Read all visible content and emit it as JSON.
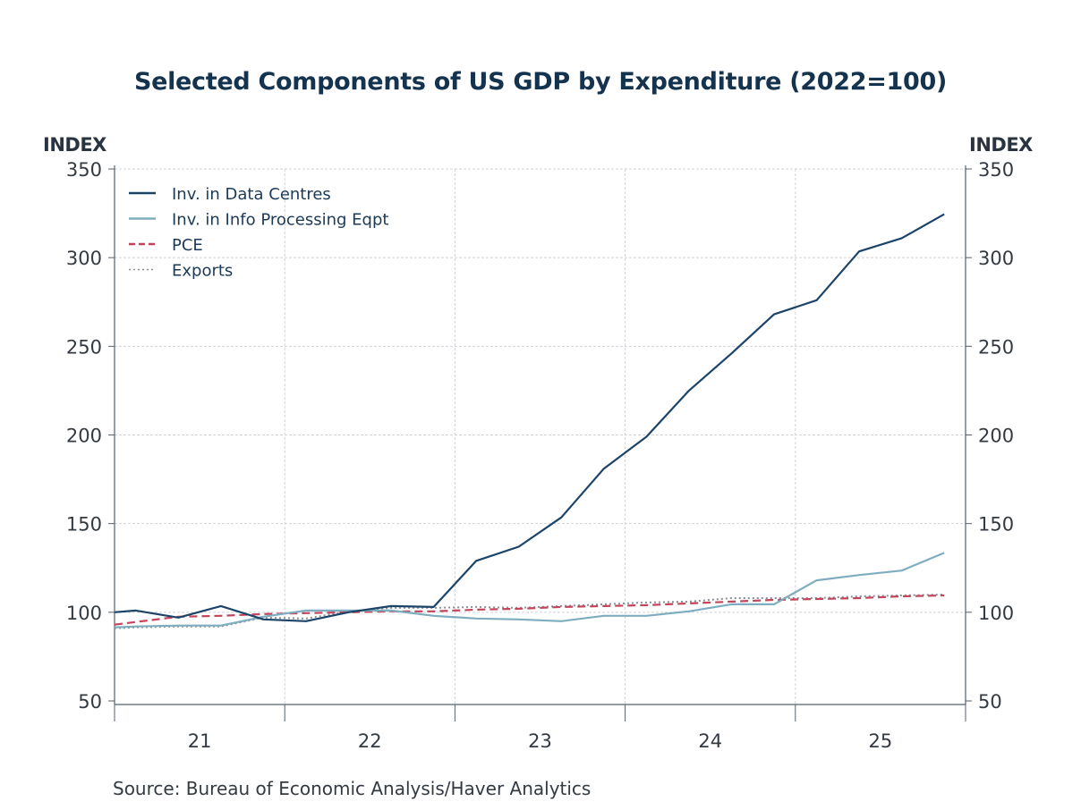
{
  "chart_data": {
    "type": "line",
    "title": "Selected Components of US GDP by Expenditure (2022=100)",
    "ylabel_left": "INDEX",
    "ylabel_right": "INDEX",
    "xlabel": "",
    "ylim": [
      48,
      350
    ],
    "yticks": [
      50,
      100,
      150,
      200,
      250,
      300,
      350
    ],
    "xlim": [
      "2021Q1",
      "2025Q4"
    ],
    "xtick_labels": [
      "21",
      "22",
      "23",
      "24",
      "25"
    ],
    "grid": true,
    "legend_position": "top-left",
    "x": [
      "2020Q4*",
      "2021Q1",
      "2021Q2",
      "2021Q3",
      "2021Q4",
      "2022Q1",
      "2022Q2",
      "2022Q3",
      "2022Q4",
      "2023Q1",
      "2023Q2",
      "2023Q3",
      "2023Q4",
      "2024Q1",
      "2024Q2",
      "2024Q3",
      "2024Q4",
      "2025Q1",
      "2025Q2",
      "2025Q3",
      "2025Q4"
    ],
    "series": [
      {
        "name": "Inv. in Data Centres",
        "color": "#1b4468",
        "style": "solid",
        "values": [
          100,
          101,
          97,
          103.5,
          96,
          95,
          100,
          103.5,
          103,
          129,
          137,
          153.5,
          181,
          199,
          225,
          246,
          268,
          276,
          303.5,
          311,
          324.5
        ]
      },
      {
        "name": "Inv. in Info Processing Eqpt",
        "color": "#7fadc0",
        "style": "solid",
        "values": [
          91.5,
          92,
          92.5,
          92.5,
          97.5,
          101,
          101,
          101,
          98,
          96.5,
          96,
          95,
          98,
          98,
          100.5,
          104.5,
          104.5,
          118,
          121,
          123.5,
          133.5
        ]
      },
      {
        "name": "PCE",
        "color": "#c4445a",
        "style": "dashed",
        "values": [
          93,
          94.5,
          97.5,
          98,
          99,
          99.5,
          100,
          100.5,
          100.5,
          101.5,
          102,
          103,
          103.5,
          104,
          105,
          106,
          107,
          107.5,
          108,
          109,
          109.5
        ]
      },
      {
        "name": "Exports",
        "color": "#8a8f96",
        "style": "dotted",
        "values": [
          91,
          91.5,
          92,
          92,
          97,
          96.5,
          100.5,
          102.5,
          102.5,
          103,
          102.5,
          103.5,
          104.5,
          105.5,
          106,
          108,
          108,
          108,
          109,
          109.5,
          110
        ]
      }
    ]
  },
  "source": "Source:  Bureau of Economic Analysis/Haver Analytics"
}
